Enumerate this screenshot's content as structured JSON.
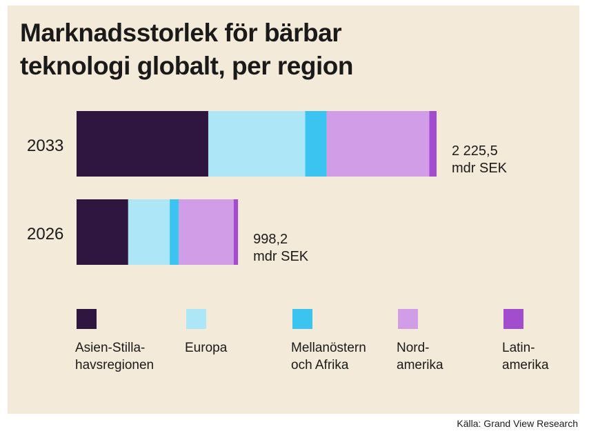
{
  "title_lines": [
    "Marknadsstorlek för bärbar",
    "teknologi globalt, per region"
  ],
  "source": "Källa: Grand View Research",
  "chart_data": {
    "type": "bar",
    "orientation": "horizontal",
    "stacked": true,
    "categories": [
      "2033",
      "2026"
    ],
    "series": [
      {
        "name": "Asien-Stilla-\nhavsregionen",
        "color": "#2e1640",
        "values": [
          814,
          319
        ]
      },
      {
        "name": "Europa",
        "color": "#ade6f7",
        "values": [
          599,
          257
        ]
      },
      {
        "name": "Mellanöstern\noch Afrika",
        "color": "#3cc4f0",
        "values": [
          133,
          56
        ]
      },
      {
        "name": "Nord-\namerika",
        "color": "#d09de6",
        "values": [
          634,
          339
        ]
      },
      {
        "name": "Latin-\namerika",
        "color": "#a24dce",
        "values": [
          45,
          27
        ]
      }
    ],
    "totals": [
      {
        "value": "2 225,5",
        "unit": "mdr SEK"
      },
      {
        "value": "998,2",
        "unit": "mdr SEK"
      }
    ],
    "legend_position": "bottom",
    "grid": false
  }
}
